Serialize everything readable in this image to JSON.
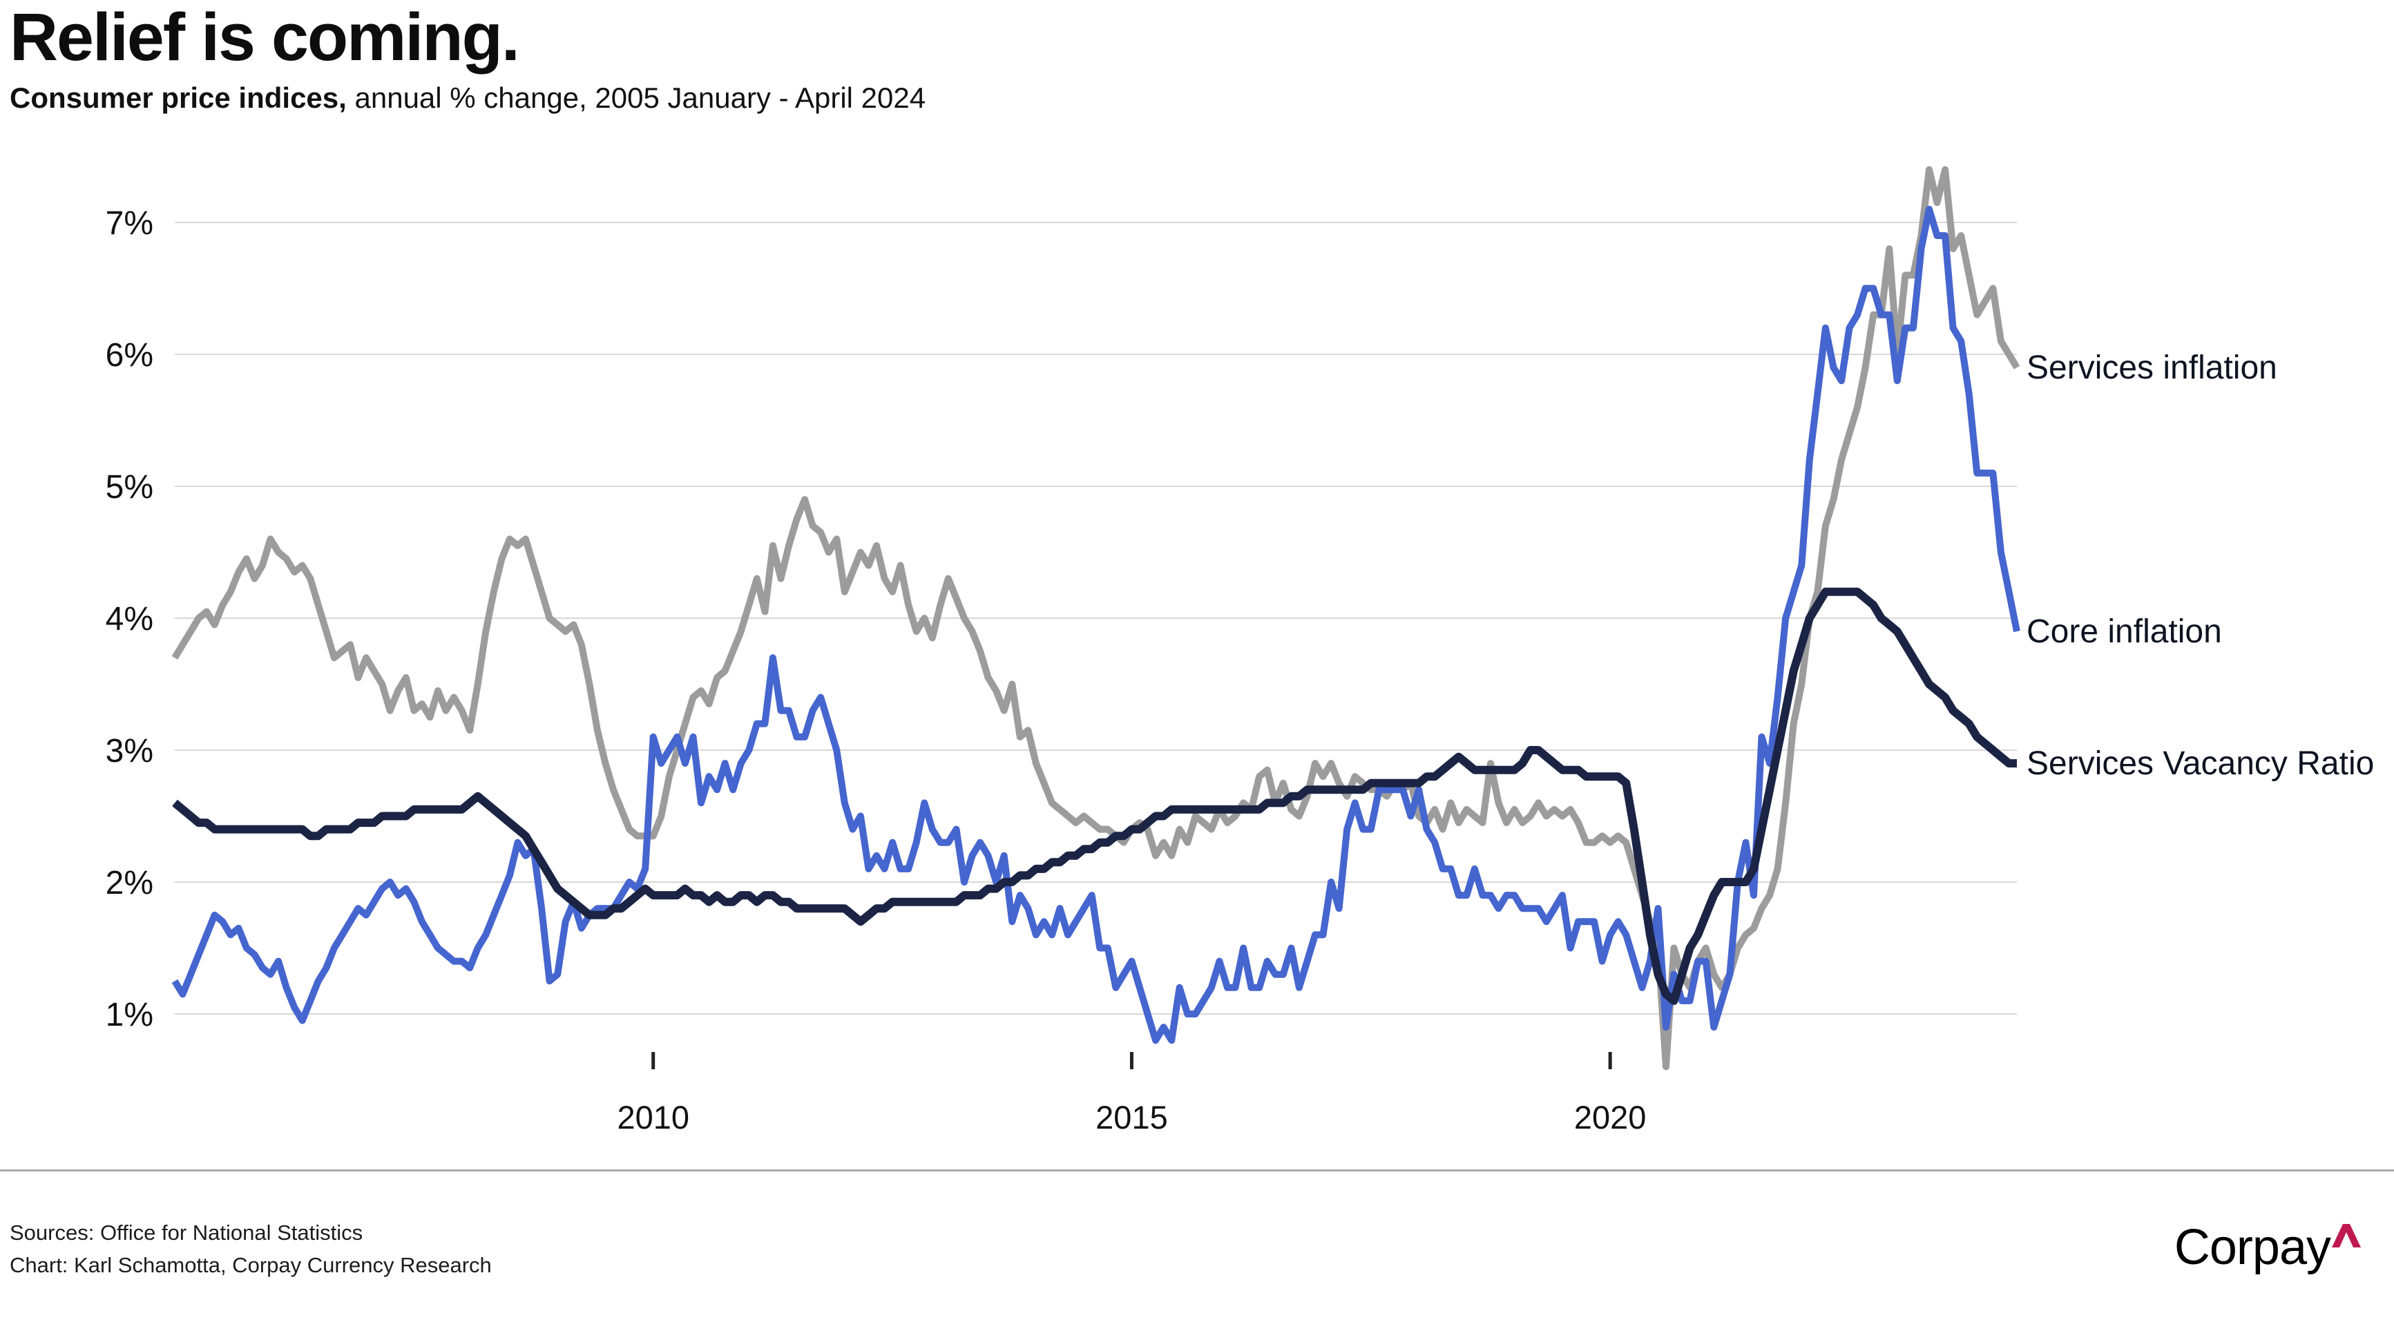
{
  "header": {
    "title": "Relief is coming.",
    "subtitle_bold": "Consumer price indices,",
    "subtitle_rest": " annual % change, 2005 January - April 2024"
  },
  "footer": {
    "sources_line": "Sources: Office for National Statistics",
    "chart_line": "Chart: Karl Schamotta, Corpay Currency Research",
    "logo_text": "Corpay",
    "logo_caret_color": "#c0194e"
  },
  "chart_data": {
    "type": "line",
    "title": "Relief is coming.",
    "subtitle": "Consumer price indices, annual % change, 2005 January - April 2024",
    "xlabel": "",
    "ylabel": "",
    "x_start_year": 2005.0,
    "x_end_year": 2024.25,
    "x_step_months": 1,
    "ylim": [
      0.5,
      7.45
    ],
    "yticks": [
      1,
      2,
      3,
      4,
      5,
      6,
      7
    ],
    "ytick_labels": [
      "1%",
      "2%",
      "3%",
      "4%",
      "5%",
      "6%",
      "7%"
    ],
    "xticks": [
      2010,
      2015,
      2020
    ],
    "xtick_labels": [
      "2010",
      "2015",
      "2020"
    ],
    "grid": true,
    "grid_color": "#d7d7d7",
    "legend_position": "right-end-of-line",
    "series": [
      {
        "name": "Services inflation",
        "color": "#9c9c9c",
        "stroke_width": 10,
        "values": [
          3.7,
          3.8,
          3.9,
          4.0,
          4.05,
          3.95,
          4.1,
          4.2,
          4.35,
          4.45,
          4.3,
          4.4,
          4.6,
          4.5,
          4.45,
          4.35,
          4.4,
          4.3,
          4.1,
          3.9,
          3.7,
          3.75,
          3.8,
          3.55,
          3.7,
          3.6,
          3.5,
          3.3,
          3.45,
          3.55,
          3.3,
          3.35,
          3.25,
          3.45,
          3.3,
          3.4,
          3.3,
          3.15,
          3.5,
          3.9,
          4.2,
          4.45,
          4.6,
          4.55,
          4.6,
          4.4,
          4.2,
          4.0,
          3.95,
          3.9,
          3.95,
          3.8,
          3.5,
          3.15,
          2.9,
          2.7,
          2.55,
          2.4,
          2.35,
          2.35,
          2.35,
          2.5,
          2.8,
          3.0,
          3.2,
          3.4,
          3.45,
          3.35,
          3.55,
          3.6,
          3.75,
          3.9,
          4.1,
          4.3,
          4.05,
          4.55,
          4.3,
          4.55,
          4.75,
          4.9,
          4.7,
          4.65,
          4.5,
          4.6,
          4.2,
          4.35,
          4.5,
          4.4,
          4.55,
          4.3,
          4.2,
          4.4,
          4.1,
          3.9,
          4.0,
          3.85,
          4.1,
          4.3,
          4.15,
          4.0,
          3.9,
          3.75,
          3.55,
          3.45,
          3.3,
          3.5,
          3.1,
          3.15,
          2.9,
          2.75,
          2.6,
          2.55,
          2.5,
          2.45,
          2.5,
          2.45,
          2.4,
          2.4,
          2.35,
          2.3,
          2.4,
          2.45,
          2.4,
          2.2,
          2.3,
          2.2,
          2.4,
          2.3,
          2.5,
          2.45,
          2.4,
          2.55,
          2.45,
          2.5,
          2.6,
          2.55,
          2.8,
          2.85,
          2.6,
          2.75,
          2.55,
          2.5,
          2.65,
          2.9,
          2.8,
          2.9,
          2.75,
          2.65,
          2.8,
          2.75,
          2.7,
          2.7,
          2.65,
          2.75,
          2.7,
          2.75,
          2.5,
          2.45,
          2.55,
          2.4,
          2.6,
          2.45,
          2.55,
          2.5,
          2.45,
          2.9,
          2.6,
          2.45,
          2.55,
          2.45,
          2.5,
          2.6,
          2.5,
          2.55,
          2.5,
          2.55,
          2.45,
          2.3,
          2.3,
          2.35,
          2.3,
          2.35,
          2.3,
          2.1,
          1.9,
          1.7,
          1.5,
          0.6,
          1.5,
          1.3,
          1.2,
          1.4,
          1.5,
          1.3,
          1.2,
          1.3,
          1.5,
          1.6,
          1.65,
          1.8,
          1.9,
          2.1,
          2.6,
          3.2,
          3.5,
          4.0,
          4.2,
          4.7,
          4.9,
          5.2,
          5.4,
          5.6,
          5.9,
          6.3,
          6.3,
          6.8,
          6.0,
          6.6,
          6.6,
          6.9,
          7.4,
          7.15,
          7.4,
          6.8,
          6.9,
          6.6,
          6.3,
          6.4,
          6.5,
          6.1,
          6.0,
          5.9
        ]
      },
      {
        "name": "Core inflation",
        "color": "#4565cf",
        "stroke_width": 10,
        "values": [
          1.25,
          1.15,
          1.3,
          1.45,
          1.6,
          1.75,
          1.7,
          1.6,
          1.65,
          1.5,
          1.45,
          1.35,
          1.3,
          1.4,
          1.2,
          1.05,
          0.95,
          1.1,
          1.25,
          1.35,
          1.5,
          1.6,
          1.7,
          1.8,
          1.75,
          1.85,
          1.95,
          2.0,
          1.9,
          1.95,
          1.85,
          1.7,
          1.6,
          1.5,
          1.45,
          1.4,
          1.4,
          1.35,
          1.5,
          1.6,
          1.75,
          1.9,
          2.05,
          2.3,
          2.2,
          2.25,
          1.8,
          1.25,
          1.3,
          1.7,
          1.85,
          1.65,
          1.75,
          1.8,
          1.8,
          1.8,
          1.9,
          2.0,
          1.95,
          2.1,
          3.1,
          2.9,
          3.0,
          3.1,
          2.9,
          3.1,
          2.6,
          2.8,
          2.7,
          2.9,
          2.7,
          2.9,
          3.0,
          3.2,
          3.2,
          3.7,
          3.3,
          3.3,
          3.1,
          3.1,
          3.3,
          3.4,
          3.2,
          3.0,
          2.6,
          2.4,
          2.5,
          2.1,
          2.2,
          2.1,
          2.3,
          2.1,
          2.1,
          2.3,
          2.6,
          2.4,
          2.3,
          2.3,
          2.4,
          2.0,
          2.2,
          2.3,
          2.2,
          2.0,
          2.2,
          1.7,
          1.9,
          1.8,
          1.6,
          1.7,
          1.6,
          1.8,
          1.6,
          1.7,
          1.8,
          1.9,
          1.5,
          1.5,
          1.2,
          1.3,
          1.4,
          1.2,
          1.0,
          0.8,
          0.9,
          0.8,
          1.2,
          1.0,
          1.0,
          1.1,
          1.2,
          1.4,
          1.2,
          1.2,
          1.5,
          1.2,
          1.2,
          1.4,
          1.3,
          1.3,
          1.5,
          1.2,
          1.4,
          1.6,
          1.6,
          2.0,
          1.8,
          2.4,
          2.6,
          2.4,
          2.4,
          2.7,
          2.7,
          2.7,
          2.7,
          2.5,
          2.7,
          2.4,
          2.3,
          2.1,
          2.1,
          1.9,
          1.9,
          2.1,
          1.9,
          1.9,
          1.8,
          1.9,
          1.9,
          1.8,
          1.8,
          1.8,
          1.7,
          1.8,
          1.9,
          1.5,
          1.7,
          1.7,
          1.7,
          1.4,
          1.6,
          1.7,
          1.6,
          1.4,
          1.2,
          1.4,
          1.8,
          0.9,
          1.3,
          1.1,
          1.1,
          1.4,
          1.4,
          0.9,
          1.1,
          1.3,
          2.0,
          2.3,
          1.9,
          3.1,
          2.9,
          3.4,
          4.0,
          4.2,
          4.4,
          5.2,
          5.7,
          6.2,
          5.9,
          5.8,
          6.2,
          6.3,
          6.5,
          6.5,
          6.3,
          6.3,
          5.8,
          6.2,
          6.2,
          6.8,
          7.1,
          6.9,
          6.9,
          6.2,
          6.1,
          5.7,
          5.1,
          5.1,
          5.1,
          4.5,
          4.2,
          3.9
        ]
      },
      {
        "name": "Services Vacancy Ratio",
        "color": "#1b2444",
        "stroke_width": 12,
        "values": [
          2.6,
          2.55,
          2.5,
          2.45,
          2.45,
          2.4,
          2.4,
          2.4,
          2.4,
          2.4,
          2.4,
          2.4,
          2.4,
          2.4,
          2.4,
          2.4,
          2.4,
          2.35,
          2.35,
          2.4,
          2.4,
          2.4,
          2.4,
          2.45,
          2.45,
          2.45,
          2.5,
          2.5,
          2.5,
          2.5,
          2.55,
          2.55,
          2.55,
          2.55,
          2.55,
          2.55,
          2.55,
          2.6,
          2.65,
          2.6,
          2.55,
          2.5,
          2.45,
          2.4,
          2.35,
          2.25,
          2.15,
          2.05,
          1.95,
          1.9,
          1.85,
          1.8,
          1.75,
          1.75,
          1.75,
          1.8,
          1.8,
          1.85,
          1.9,
          1.95,
          1.9,
          1.9,
          1.9,
          1.9,
          1.95,
          1.9,
          1.9,
          1.85,
          1.9,
          1.85,
          1.85,
          1.9,
          1.9,
          1.85,
          1.9,
          1.9,
          1.85,
          1.85,
          1.8,
          1.8,
          1.8,
          1.8,
          1.8,
          1.8,
          1.8,
          1.75,
          1.7,
          1.75,
          1.8,
          1.8,
          1.85,
          1.85,
          1.85,
          1.85,
          1.85,
          1.85,
          1.85,
          1.85,
          1.85,
          1.9,
          1.9,
          1.9,
          1.95,
          1.95,
          2.0,
          2.0,
          2.05,
          2.05,
          2.1,
          2.1,
          2.15,
          2.15,
          2.2,
          2.2,
          2.25,
          2.25,
          2.3,
          2.3,
          2.35,
          2.35,
          2.4,
          2.4,
          2.45,
          2.5,
          2.5,
          2.55,
          2.55,
          2.55,
          2.55,
          2.55,
          2.55,
          2.55,
          2.55,
          2.55,
          2.55,
          2.55,
          2.55,
          2.6,
          2.6,
          2.6,
          2.65,
          2.65,
          2.7,
          2.7,
          2.7,
          2.7,
          2.7,
          2.7,
          2.7,
          2.7,
          2.75,
          2.75,
          2.75,
          2.75,
          2.75,
          2.75,
          2.75,
          2.8,
          2.8,
          2.85,
          2.9,
          2.95,
          2.9,
          2.85,
          2.85,
          2.85,
          2.85,
          2.85,
          2.85,
          2.9,
          3.0,
          3.0,
          2.95,
          2.9,
          2.85,
          2.85,
          2.85,
          2.8,
          2.8,
          2.8,
          2.8,
          2.8,
          2.75,
          2.4,
          2.0,
          1.6,
          1.3,
          1.15,
          1.1,
          1.3,
          1.5,
          1.6,
          1.75,
          1.9,
          2.0,
          2.0,
          2.0,
          2.0,
          2.1,
          2.4,
          2.7,
          3.0,
          3.3,
          3.6,
          3.8,
          4.0,
          4.1,
          4.2,
          4.2,
          4.2,
          4.2,
          4.2,
          4.15,
          4.1,
          4.0,
          3.95,
          3.9,
          3.8,
          3.7,
          3.6,
          3.5,
          3.45,
          3.4,
          3.3,
          3.25,
          3.2,
          3.1,
          3.05,
          3.0,
          2.95,
          2.9,
          2.9
        ]
      }
    ]
  }
}
